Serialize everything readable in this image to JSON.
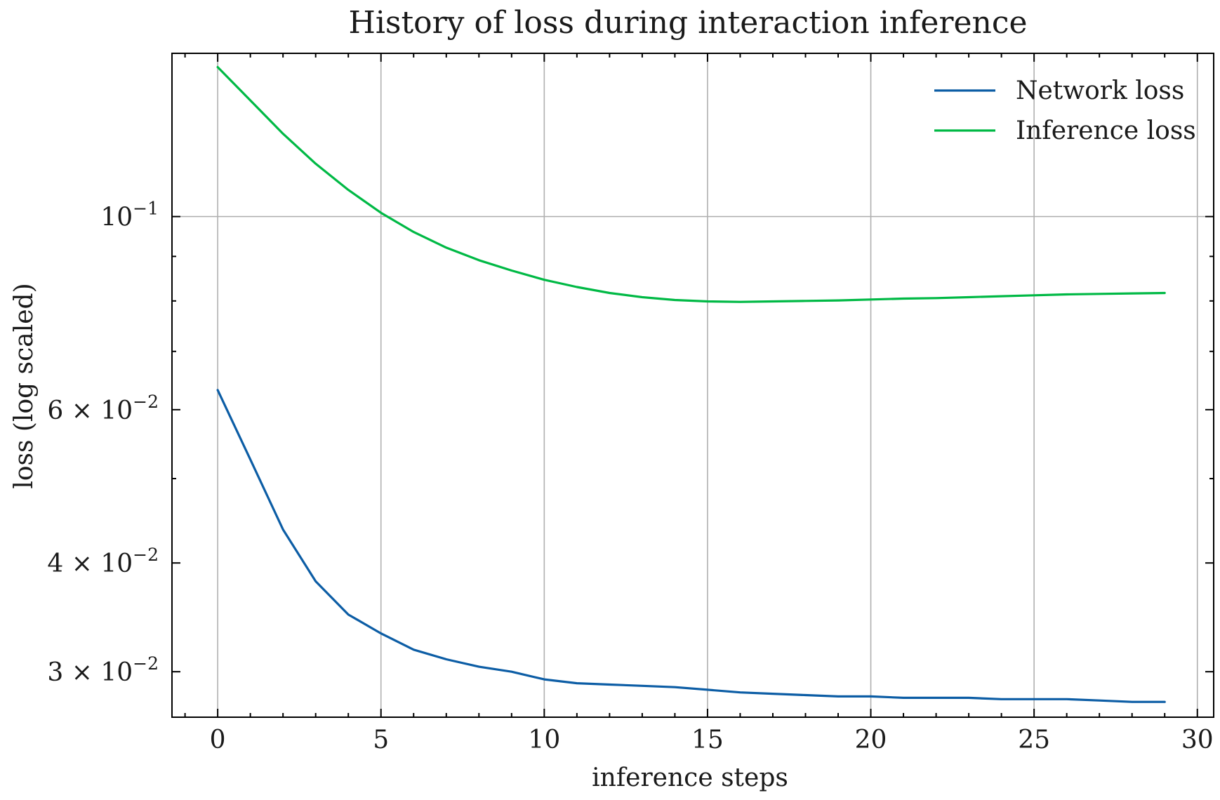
{
  "chart_data": {
    "type": "line",
    "title": "History of loss during interaction inference",
    "xlabel": "inference steps",
    "ylabel": "loss (log scaled)",
    "xlim": [
      -1.4,
      30.5
    ],
    "ylim": [
      0.0266,
      0.154
    ],
    "yscale": "log",
    "grid": true,
    "legend_position": "top-right",
    "x_ticks": [
      {
        "value": 0,
        "label": "0"
      },
      {
        "value": 5,
        "label": "5"
      },
      {
        "value": 10,
        "label": "10"
      },
      {
        "value": 15,
        "label": "15"
      },
      {
        "value": 20,
        "label": "20"
      },
      {
        "value": 25,
        "label": "25"
      },
      {
        "value": 30,
        "label": "30"
      }
    ],
    "y_ticks": [
      {
        "value": 0.1,
        "base": "10",
        "exp": "−1",
        "mant": ""
      },
      {
        "value": 0.06,
        "base": "10",
        "exp": "−2",
        "mant": "6 × "
      },
      {
        "value": 0.04,
        "base": "10",
        "exp": "−2",
        "mant": "4 × "
      },
      {
        "value": 0.03,
        "base": "10",
        "exp": "−2",
        "mant": "3 × "
      }
    ],
    "y_minor_ticks": [
      0.05,
      0.07,
      0.08,
      0.09
    ],
    "x": [
      0,
      1,
      2,
      3,
      4,
      5,
      6,
      7,
      8,
      9,
      10,
      11,
      12,
      13,
      14,
      15,
      16,
      17,
      18,
      19,
      20,
      21,
      22,
      23,
      24,
      25,
      26,
      27,
      28,
      29
    ],
    "series": [
      {
        "name": "Network loss",
        "color": "#0C5DA5",
        "values": [
          0.0632,
          0.0526,
          0.0437,
          0.0381,
          0.0349,
          0.0332,
          0.0318,
          0.031,
          0.0304,
          0.03,
          0.0294,
          0.0291,
          0.029,
          0.0289,
          0.0288,
          0.0286,
          0.0284,
          0.0283,
          0.0282,
          0.0281,
          0.0281,
          0.028,
          0.028,
          0.028,
          0.0279,
          0.0279,
          0.0279,
          0.0278,
          0.0277,
          0.0277
        ]
      },
      {
        "name": "Inference loss",
        "color": "#00B945",
        "values": [
          0.1485,
          0.136,
          0.1245,
          0.115,
          0.1073,
          0.101,
          0.096,
          0.0921,
          0.0891,
          0.0867,
          0.0846,
          0.083,
          0.0817,
          0.0808,
          0.0802,
          0.0799,
          0.0798,
          0.0799,
          0.08,
          0.0801,
          0.0803,
          0.0805,
          0.0806,
          0.0808,
          0.081,
          0.0812,
          0.0814,
          0.0815,
          0.0816,
          0.0817
        ]
      }
    ]
  }
}
